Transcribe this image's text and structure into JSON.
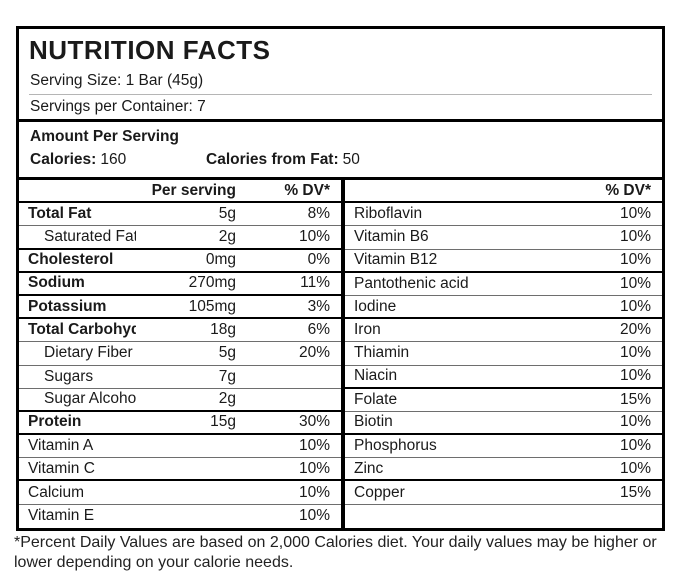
{
  "colors": {
    "border": "#000000",
    "thin_line": "#6e6e6e",
    "light_line": "#b5b5b5",
    "text": "#1a1a1a",
    "background": "#ffffff"
  },
  "header": {
    "title": "NUTRITION FACTS",
    "serving_size": "Serving Size: 1 Bar (45g)",
    "servings_per_container": "Servings per Container: 7"
  },
  "amount_per_serving": {
    "section_label": "Amount Per Serving",
    "calories_label": "Calories:",
    "calories_value": "160",
    "calories_from_fat_label": "Calories from Fat:",
    "calories_from_fat_value": "50"
  },
  "left_table": {
    "header": {
      "amount": "Per serving",
      "dv": "% DV*"
    },
    "rows": [
      {
        "label": "Total Fat",
        "amount": "5g",
        "dv": "8%",
        "bold": true,
        "indent": false,
        "sep": "thin"
      },
      {
        "label": "Saturated Fat",
        "amount": "2g",
        "dv": "10%",
        "bold": false,
        "indent": true,
        "sep": "thick"
      },
      {
        "label": "Cholesterol",
        "amount": "0mg",
        "dv": "0%",
        "bold": true,
        "indent": false,
        "sep": "thick"
      },
      {
        "label": "Sodium",
        "amount": "270mg",
        "dv": "11%",
        "bold": true,
        "indent": false,
        "sep": "thick"
      },
      {
        "label": "Potassium",
        "amount": "105mg",
        "dv": "3%",
        "bold": true,
        "indent": false,
        "sep": "thick"
      },
      {
        "label": "Total Carbohydrates",
        "amount": "18g",
        "dv": "6%",
        "bold": true,
        "indent": false,
        "sep": "thin"
      },
      {
        "label": "Dietary Fiber",
        "amount": "5g",
        "dv": "20%",
        "bold": false,
        "indent": true,
        "sep": "thin"
      },
      {
        "label": "Sugars",
        "amount": "7g",
        "dv": "",
        "bold": false,
        "indent": true,
        "sep": "thin"
      },
      {
        "label": "Sugar Alcohol",
        "amount": "2g",
        "dv": "",
        "bold": false,
        "indent": true,
        "sep": "thick"
      },
      {
        "label": "Protein",
        "amount": "15g",
        "dv": "30%",
        "bold": true,
        "indent": false,
        "sep": "thick"
      },
      {
        "label": "Vitamin A",
        "amount": "",
        "dv": "10%",
        "bold": false,
        "indent": false,
        "sep": "thin"
      },
      {
        "label": "Vitamin C",
        "amount": "",
        "dv": "10%",
        "bold": false,
        "indent": false,
        "sep": "thick"
      },
      {
        "label": "Calcium",
        "amount": "",
        "dv": "10%",
        "bold": false,
        "indent": false,
        "sep": "thin"
      },
      {
        "label": "Vitamin E",
        "amount": "",
        "dv": "10%",
        "bold": false,
        "indent": false,
        "sep": "none"
      }
    ]
  },
  "right_table": {
    "header": {
      "dv": "% DV*"
    },
    "rows": [
      {
        "label": "Riboflavin",
        "dv": "10%",
        "bold": false,
        "indent": false,
        "sep": "thin"
      },
      {
        "label": "Vitamin B6",
        "dv": "10%",
        "bold": false,
        "indent": false,
        "sep": "thin"
      },
      {
        "label": "Vitamin B12",
        "dv": "10%",
        "bold": false,
        "indent": false,
        "sep": "thick"
      },
      {
        "label": "Pantothenic acid",
        "dv": "10%",
        "bold": false,
        "indent": false,
        "sep": "thin"
      },
      {
        "label": "Iodine",
        "dv": "10%",
        "bold": false,
        "indent": false,
        "sep": "thick"
      },
      {
        "label": "Iron",
        "dv": "20%",
        "bold": false,
        "indent": false,
        "sep": "thin"
      },
      {
        "label": "Thiamin",
        "dv": "10%",
        "bold": false,
        "indent": false,
        "sep": "thin"
      },
      {
        "label": "Niacin",
        "dv": "10%",
        "bold": false,
        "indent": false,
        "sep": "thick"
      },
      {
        "label": "Folate",
        "dv": "15%",
        "bold": false,
        "indent": false,
        "sep": "thin"
      },
      {
        "label": "Biotin",
        "dv": "10%",
        "bold": false,
        "indent": false,
        "sep": "thick"
      },
      {
        "label": "Phosphorus",
        "dv": "10%",
        "bold": false,
        "indent": false,
        "sep": "thin"
      },
      {
        "label": "Zinc",
        "dv": "10%",
        "bold": false,
        "indent": false,
        "sep": "thick"
      },
      {
        "label": "Copper",
        "dv": "15%",
        "bold": false,
        "indent": false,
        "sep": "thin"
      },
      {
        "label": "",
        "dv": "",
        "bold": false,
        "indent": false,
        "sep": "none"
      }
    ]
  },
  "footnote": "*Percent Daily Values are based on 2,000 Calories diet. Your daily values may be higher or lower depending on your calorie needs."
}
